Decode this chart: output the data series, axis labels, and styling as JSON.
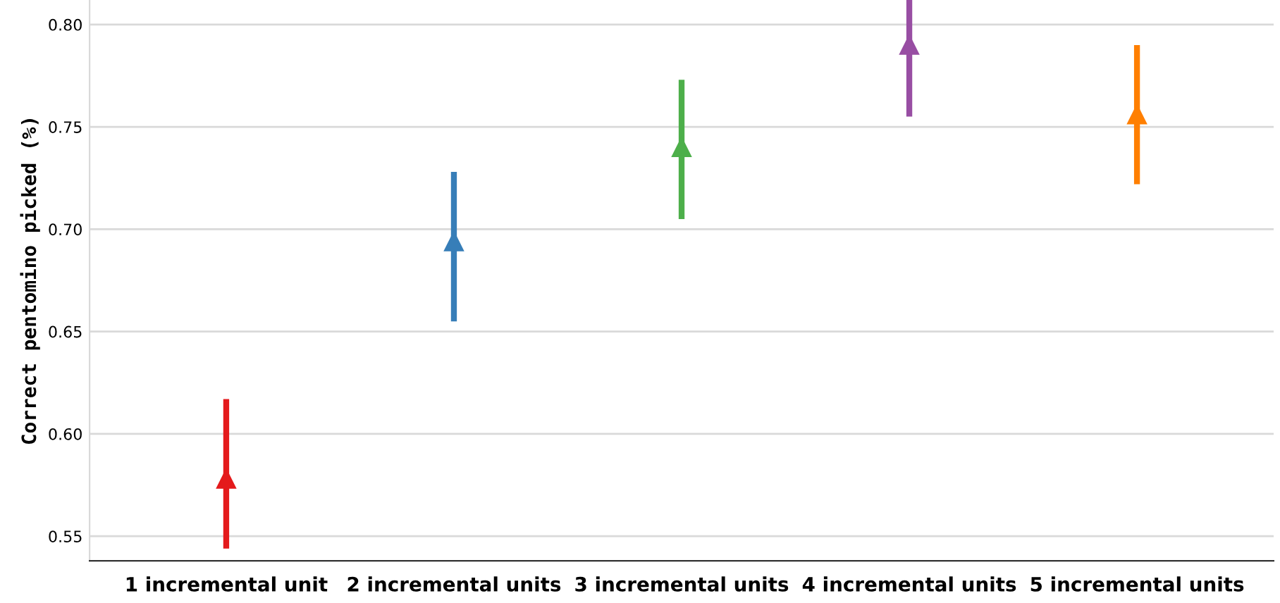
{
  "chart_data": {
    "type": "scatter",
    "ylabel": "Correct pentomino picked (%)",
    "categories": [
      "1 incremental unit",
      "2 incremental units",
      "3 incremental units",
      "4 incremental units",
      "5 incremental units"
    ],
    "values": [
      0.578,
      0.694,
      0.74,
      0.79,
      0.756
    ],
    "errors": [
      [
        0.544,
        0.617
      ],
      [
        0.655,
        0.728
      ],
      [
        0.705,
        0.773
      ],
      [
        0.755,
        0.812
      ],
      [
        0.722,
        0.79
      ]
    ],
    "colors": [
      "#e41a1c",
      "#377eb8",
      "#4daf4a",
      "#984ea3",
      "#ff7f00"
    ],
    "ylim": [
      0.538,
      0.812
    ],
    "yticks": [
      0.55,
      {
        "value": 0.6,
        "label": "0.60"
      },
      0.65,
      {
        "value": 0.7,
        "label": "0.70"
      },
      0.75,
      {
        "value": 0.8,
        "label": "0.80"
      }
    ],
    "grid": "y",
    "marker": "triangle"
  }
}
